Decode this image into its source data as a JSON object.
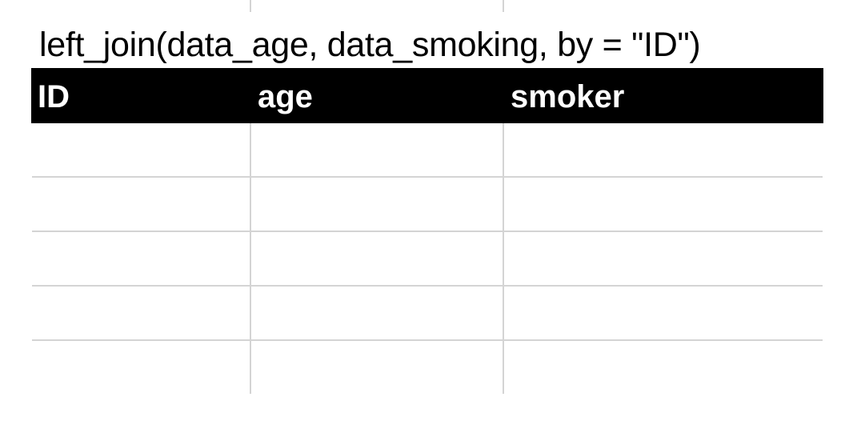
{
  "caption": "left_join(data_age, data_smoking, by = \"ID\")",
  "table": {
    "columns": [
      "ID",
      "age",
      "smoker"
    ],
    "rows": [
      [
        "",
        "",
        ""
      ],
      [
        "",
        "",
        ""
      ],
      [
        "",
        "",
        ""
      ],
      [
        "",
        "",
        ""
      ],
      [
        "",
        "",
        ""
      ]
    ]
  },
  "colors": {
    "header_background": "#000000",
    "header_text": "#ffffff",
    "gridline": "#d4d4d4"
  }
}
